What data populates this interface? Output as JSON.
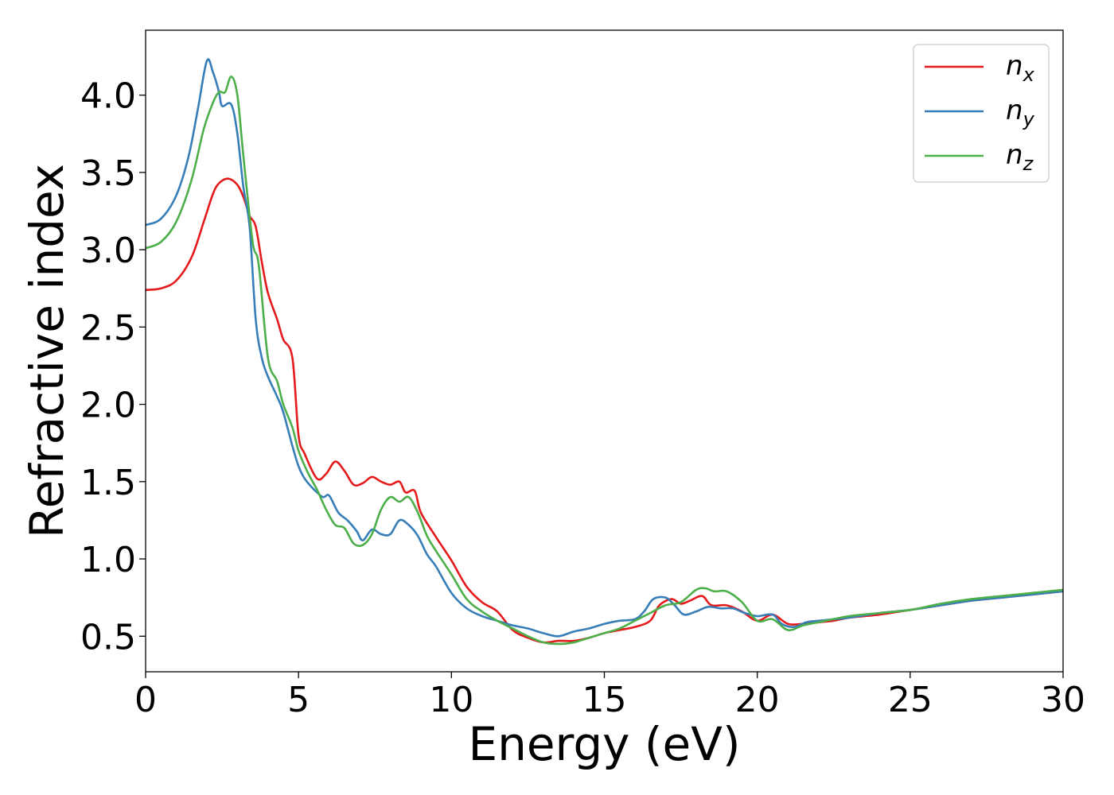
{
  "chart_data": {
    "type": "line",
    "title": "",
    "xlabel": "Energy (eV)",
    "ylabel": "Refractive index",
    "xlim": [
      0,
      30
    ],
    "ylim": [
      0.27,
      4.42
    ],
    "xticks": [
      0,
      5,
      10,
      15,
      20,
      25,
      30
    ],
    "xtick_labels": [
      "0",
      "5",
      "10",
      "15",
      "20",
      "25",
      "30"
    ],
    "yticks": [
      0.5,
      1.0,
      1.5,
      2.0,
      2.5,
      3.0,
      3.5,
      4.0
    ],
    "ytick_labels": [
      "0.5",
      "1.0",
      "1.5",
      "2.0",
      "2.5",
      "3.0",
      "3.5",
      "4.0"
    ],
    "grid": false,
    "legend_position": "top-right",
    "series": [
      {
        "name": "n_x",
        "legend_base": "n",
        "legend_sub": "x",
        "color": "#e41a1c",
        "points": [
          [
            0,
            2.74
          ],
          [
            0.5,
            2.75
          ],
          [
            1.0,
            2.8
          ],
          [
            1.5,
            2.95
          ],
          [
            1.9,
            3.18
          ],
          [
            2.2,
            3.36
          ],
          [
            2.4,
            3.43
          ],
          [
            2.7,
            3.46
          ],
          [
            3.0,
            3.42
          ],
          [
            3.2,
            3.34
          ],
          [
            3.4,
            3.22
          ],
          [
            3.6,
            3.15
          ],
          [
            3.8,
            2.92
          ],
          [
            4.0,
            2.72
          ],
          [
            4.3,
            2.55
          ],
          [
            4.5,
            2.42
          ],
          [
            4.8,
            2.3
          ],
          [
            5.0,
            1.8
          ],
          [
            5.2,
            1.68
          ],
          [
            5.6,
            1.52
          ],
          [
            5.9,
            1.55
          ],
          [
            6.2,
            1.63
          ],
          [
            6.5,
            1.57
          ],
          [
            6.8,
            1.48
          ],
          [
            7.1,
            1.49
          ],
          [
            7.4,
            1.53
          ],
          [
            7.7,
            1.5
          ],
          [
            8.0,
            1.48
          ],
          [
            8.3,
            1.5
          ],
          [
            8.5,
            1.43
          ],
          [
            8.8,
            1.44
          ],
          [
            9.0,
            1.3
          ],
          [
            9.5,
            1.14
          ],
          [
            10.0,
            0.99
          ],
          [
            10.5,
            0.82
          ],
          [
            11.0,
            0.72
          ],
          [
            11.5,
            0.66
          ],
          [
            12.0,
            0.54
          ],
          [
            12.5,
            0.49
          ],
          [
            13.0,
            0.46
          ],
          [
            13.5,
            0.47
          ],
          [
            14.0,
            0.47
          ],
          [
            14.5,
            0.49
          ],
          [
            15.0,
            0.52
          ],
          [
            15.5,
            0.54
          ],
          [
            16.0,
            0.56
          ],
          [
            16.5,
            0.6
          ],
          [
            16.8,
            0.7
          ],
          [
            17.2,
            0.74
          ],
          [
            17.5,
            0.71
          ],
          [
            17.8,
            0.73
          ],
          [
            18.2,
            0.76
          ],
          [
            18.5,
            0.7
          ],
          [
            19.0,
            0.7
          ],
          [
            19.5,
            0.66
          ],
          [
            20.0,
            0.6
          ],
          [
            20.5,
            0.64
          ],
          [
            21.0,
            0.58
          ],
          [
            21.5,
            0.58
          ],
          [
            22.0,
            0.59
          ],
          [
            22.5,
            0.6
          ],
          [
            23.0,
            0.62
          ],
          [
            24.0,
            0.64
          ],
          [
            25.0,
            0.67
          ],
          [
            26.0,
            0.7
          ],
          [
            27.0,
            0.73
          ],
          [
            28.0,
            0.75
          ],
          [
            29.0,
            0.77
          ],
          [
            30.0,
            0.79
          ]
        ]
      },
      {
        "name": "n_y",
        "legend_base": "n",
        "legend_sub": "y",
        "color": "#377eb8",
        "points": [
          [
            0,
            3.16
          ],
          [
            0.5,
            3.2
          ],
          [
            1.0,
            3.35
          ],
          [
            1.4,
            3.6
          ],
          [
            1.7,
            3.9
          ],
          [
            2.0,
            4.22
          ],
          [
            2.2,
            4.15
          ],
          [
            2.4,
            4.02
          ],
          [
            2.5,
            3.93
          ],
          [
            2.8,
            3.94
          ],
          [
            3.0,
            3.75
          ],
          [
            3.2,
            3.4
          ],
          [
            3.4,
            3.15
          ],
          [
            3.6,
            2.55
          ],
          [
            3.8,
            2.3
          ],
          [
            4.0,
            2.18
          ],
          [
            4.3,
            2.05
          ],
          [
            4.5,
            1.95
          ],
          [
            4.8,
            1.73
          ],
          [
            5.0,
            1.6
          ],
          [
            5.2,
            1.52
          ],
          [
            5.5,
            1.45
          ],
          [
            5.8,
            1.4
          ],
          [
            6.0,
            1.41
          ],
          [
            6.3,
            1.3
          ],
          [
            6.6,
            1.25
          ],
          [
            6.9,
            1.18
          ],
          [
            7.1,
            1.12
          ],
          [
            7.4,
            1.19
          ],
          [
            7.7,
            1.16
          ],
          [
            8.0,
            1.16
          ],
          [
            8.3,
            1.25
          ],
          [
            8.6,
            1.22
          ],
          [
            8.9,
            1.15
          ],
          [
            9.2,
            1.03
          ],
          [
            9.5,
            0.95
          ],
          [
            10.0,
            0.78
          ],
          [
            10.5,
            0.68
          ],
          [
            11.0,
            0.63
          ],
          [
            11.5,
            0.6
          ],
          [
            12.0,
            0.57
          ],
          [
            12.5,
            0.55
          ],
          [
            13.0,
            0.52
          ],
          [
            13.5,
            0.5
          ],
          [
            14.0,
            0.53
          ],
          [
            14.5,
            0.55
          ],
          [
            15.0,
            0.58
          ],
          [
            15.5,
            0.6
          ],
          [
            16.0,
            0.61
          ],
          [
            16.3,
            0.66
          ],
          [
            16.6,
            0.74
          ],
          [
            17.0,
            0.75
          ],
          [
            17.3,
            0.7
          ],
          [
            17.6,
            0.64
          ],
          [
            18.0,
            0.66
          ],
          [
            18.4,
            0.69
          ],
          [
            18.8,
            0.68
          ],
          [
            19.2,
            0.68
          ],
          [
            19.6,
            0.65
          ],
          [
            20.0,
            0.63
          ],
          [
            20.5,
            0.64
          ],
          [
            20.8,
            0.58
          ],
          [
            21.2,
            0.56
          ],
          [
            21.6,
            0.59
          ],
          [
            22.0,
            0.6
          ],
          [
            23.0,
            0.62
          ],
          [
            24.0,
            0.65
          ],
          [
            25.0,
            0.67
          ],
          [
            26.0,
            0.7
          ],
          [
            27.0,
            0.73
          ],
          [
            28.0,
            0.75
          ],
          [
            29.0,
            0.77
          ],
          [
            30.0,
            0.79
          ]
        ]
      },
      {
        "name": "n_z",
        "legend_base": "n",
        "legend_sub": "z",
        "color": "#4daf4a",
        "points": [
          [
            0,
            3.01
          ],
          [
            0.5,
            3.05
          ],
          [
            1.0,
            3.18
          ],
          [
            1.5,
            3.45
          ],
          [
            1.9,
            3.78
          ],
          [
            2.2,
            3.95
          ],
          [
            2.4,
            4.02
          ],
          [
            2.6,
            4.02
          ],
          [
            2.8,
            4.12
          ],
          [
            3.0,
            4.0
          ],
          [
            3.2,
            3.6
          ],
          [
            3.5,
            3.05
          ],
          [
            3.7,
            2.9
          ],
          [
            4.0,
            2.3
          ],
          [
            4.3,
            2.15
          ],
          [
            4.5,
            2.0
          ],
          [
            4.8,
            1.85
          ],
          [
            5.0,
            1.7
          ],
          [
            5.3,
            1.56
          ],
          [
            5.6,
            1.45
          ],
          [
            5.9,
            1.32
          ],
          [
            6.2,
            1.22
          ],
          [
            6.5,
            1.2
          ],
          [
            6.8,
            1.1
          ],
          [
            7.1,
            1.09
          ],
          [
            7.4,
            1.16
          ],
          [
            7.7,
            1.32
          ],
          [
            8.0,
            1.4
          ],
          [
            8.3,
            1.37
          ],
          [
            8.6,
            1.4
          ],
          [
            8.9,
            1.3
          ],
          [
            9.2,
            1.15
          ],
          [
            9.5,
            1.05
          ],
          [
            10.0,
            0.9
          ],
          [
            10.5,
            0.74
          ],
          [
            11.0,
            0.66
          ],
          [
            11.5,
            0.6
          ],
          [
            12.0,
            0.55
          ],
          [
            12.5,
            0.5
          ],
          [
            13.0,
            0.46
          ],
          [
            13.5,
            0.45
          ],
          [
            14.0,
            0.46
          ],
          [
            14.5,
            0.49
          ],
          [
            15.0,
            0.52
          ],
          [
            15.5,
            0.55
          ],
          [
            16.0,
            0.6
          ],
          [
            16.5,
            0.65
          ],
          [
            17.0,
            0.7
          ],
          [
            17.5,
            0.72
          ],
          [
            18.0,
            0.8
          ],
          [
            18.3,
            0.81
          ],
          [
            18.6,
            0.79
          ],
          [
            19.0,
            0.79
          ],
          [
            19.5,
            0.72
          ],
          [
            20.0,
            0.6
          ],
          [
            20.5,
            0.61
          ],
          [
            21.0,
            0.54
          ],
          [
            21.5,
            0.57
          ],
          [
            22.0,
            0.59
          ],
          [
            23.0,
            0.63
          ],
          [
            24.0,
            0.65
          ],
          [
            25.0,
            0.67
          ],
          [
            26.0,
            0.71
          ],
          [
            27.0,
            0.74
          ],
          [
            28.0,
            0.76
          ],
          [
            29.0,
            0.78
          ],
          [
            30.0,
            0.8
          ]
        ]
      }
    ]
  }
}
